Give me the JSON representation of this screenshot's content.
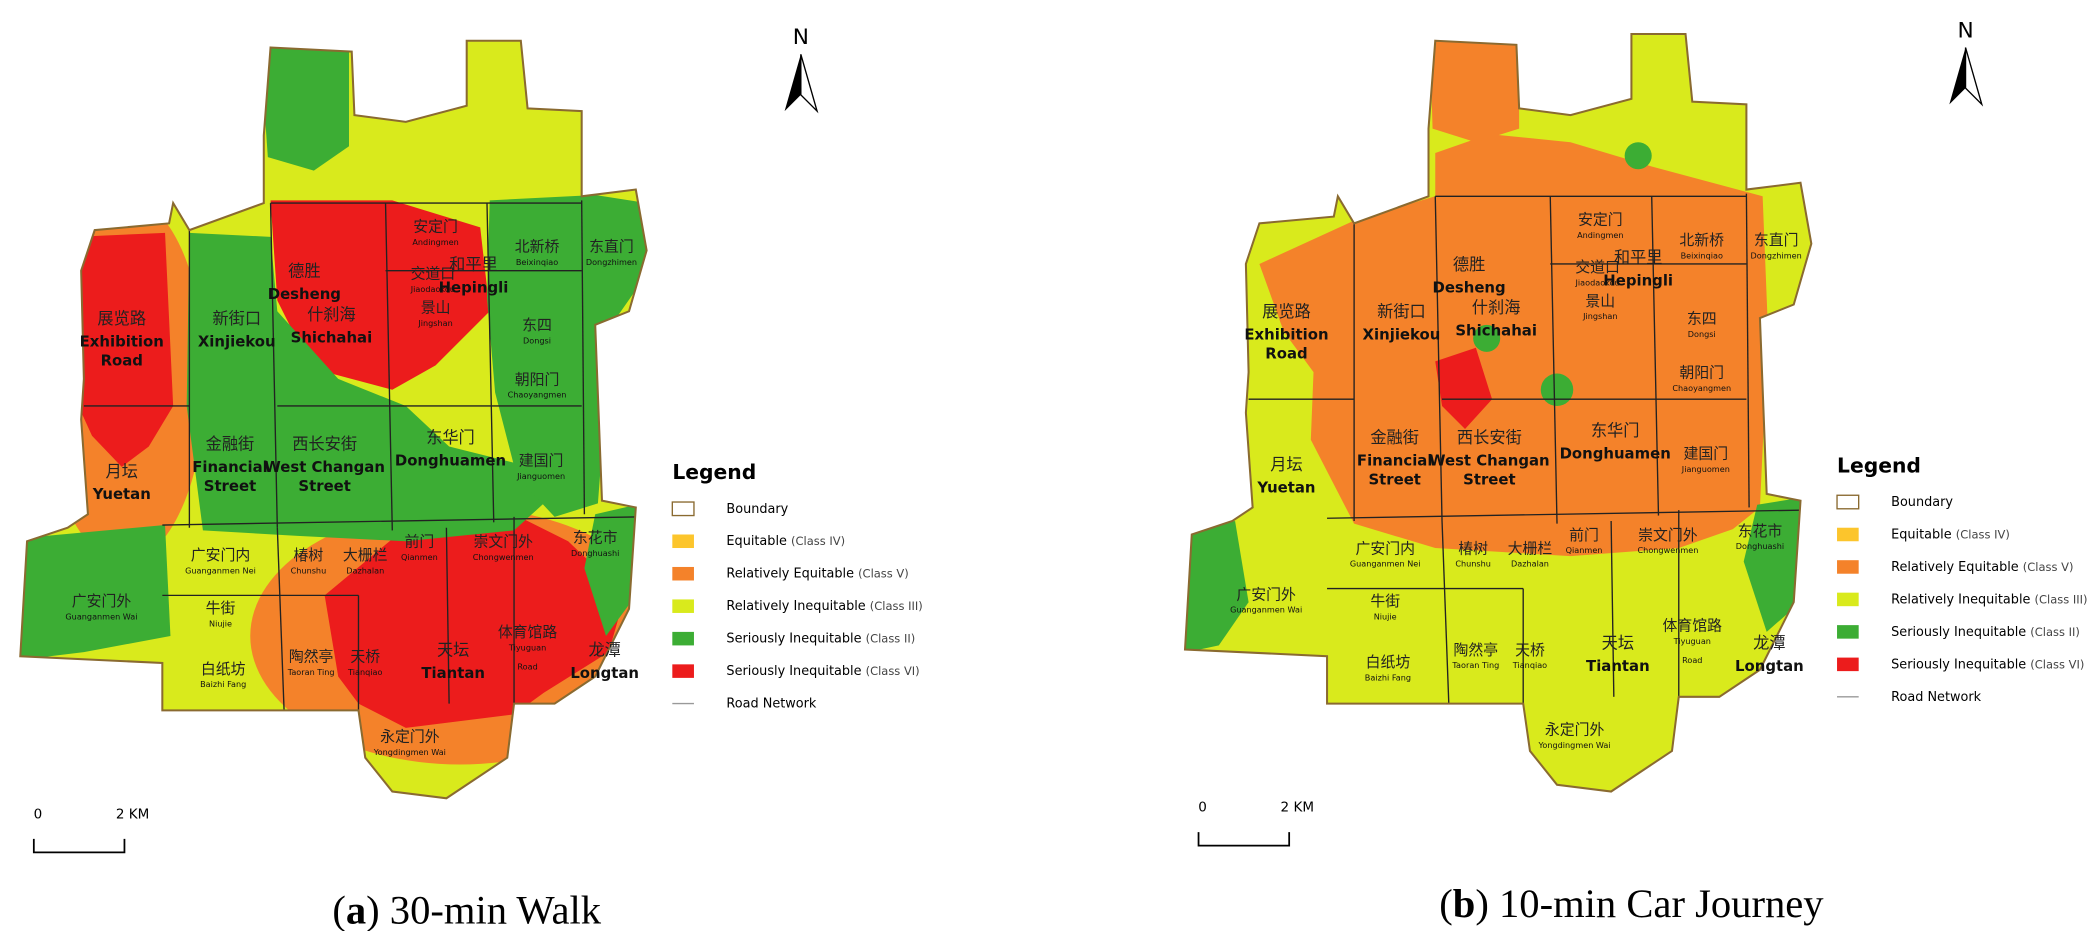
{
  "panels": [
    {
      "caption": [
        "(",
        "a",
        ") 30-min Walk"
      ]
    },
    {
      "caption": [
        "(",
        "b",
        ") 10-min Car Journey"
      ]
    }
  ],
  "north": "N",
  "scale": {
    "start": "0",
    "end": "2 KM"
  },
  "legend": {
    "title": "Legend",
    "items": [
      {
        "label": "Boundary"
      },
      {
        "label": "Equitable",
        "class": "(Class IV)",
        "color": "#fcc52c"
      },
      {
        "label": "Relatively Equitable",
        "class": "(Class V)",
        "color": "#f4822a"
      },
      {
        "label": "Relatively Inequitable",
        "class": "(Class III)",
        "color": "#d9ea1c"
      },
      {
        "label": "Seriously Inequitable",
        "class": "(Class II)",
        "color": "#3cad34"
      },
      {
        "label": "Seriously Inequitable",
        "class": "(Class VI)",
        "color": "#ec1c1c"
      },
      {
        "label": "Road Network"
      }
    ]
  },
  "districts": [
    {
      "cn": "德胜",
      "en": [
        "Desheng"
      ]
    },
    {
      "cn": "和平里",
      "en": [
        "Hepingli"
      ]
    },
    {
      "cn": "安定门",
      "en": [
        "Andingmen"
      ]
    },
    {
      "cn": "北新桥",
      "en": [
        "Beixinqiao"
      ]
    },
    {
      "cn": "东直门",
      "en": [
        "Dongzhimen"
      ]
    },
    {
      "cn": "新街口",
      "en": [
        "Xinjiekou"
      ]
    },
    {
      "cn": "什刹海",
      "en": [
        "Shichahai"
      ]
    },
    {
      "cn": "交道口",
      "en": [
        "Jiaodaokou"
      ]
    },
    {
      "cn": "展览路",
      "en": [
        "Exhibition",
        "Road"
      ]
    },
    {
      "cn": "景山",
      "en": [
        "Jingshan"
      ]
    },
    {
      "cn": "东四",
      "en": [
        "Dongsi"
      ]
    },
    {
      "cn": "朝阳门",
      "en": [
        "Chaoyangmen"
      ]
    },
    {
      "cn": "金融街",
      "en": [
        "Financial",
        "Street"
      ]
    },
    {
      "cn": "西长安街",
      "en": [
        "West Changan",
        "Street"
      ]
    },
    {
      "cn": "东华门",
      "en": [
        "Donghuamen"
      ]
    },
    {
      "cn": "建国门",
      "en": [
        "Jianguomen"
      ]
    },
    {
      "cn": "月坛",
      "en": [
        "Yuetan"
      ]
    },
    {
      "cn": "广安门内",
      "en": [
        "Guanganmen Nei"
      ]
    },
    {
      "cn": "椿树",
      "en": [
        "Chunshu"
      ]
    },
    {
      "cn": "大栅栏",
      "en": [
        "Dazhalan"
      ]
    },
    {
      "cn": "前门",
      "en": [
        "Qianmen"
      ]
    },
    {
      "cn": "崇文门外",
      "en": [
        "Chongwenmen"
      ]
    },
    {
      "cn": "东花市",
      "en": [
        "Donghuashi"
      ]
    },
    {
      "cn": "广安门外",
      "en": [
        "Guanganmen Wai"
      ]
    },
    {
      "cn": "牛街",
      "en": [
        "Niujie"
      ]
    },
    {
      "cn": "白纸坊",
      "en": [
        "Baizhi Fang"
      ]
    },
    {
      "cn": "陶然亭",
      "en": [
        "Taoran Ting"
      ]
    },
    {
      "cn": "天桥",
      "en": [
        "Tianqiao"
      ]
    },
    {
      "cn": "天坛",
      "en": [
        "Tiantan"
      ]
    },
    {
      "cn": "体育馆路",
      "en": [
        "Tiyuguan",
        "Road"
      ]
    },
    {
      "cn": "龙潭",
      "en": [
        "Longtan"
      ]
    },
    {
      "cn": "永定门外",
      "en": [
        "Yongdingmen Wai"
      ]
    }
  ]
}
